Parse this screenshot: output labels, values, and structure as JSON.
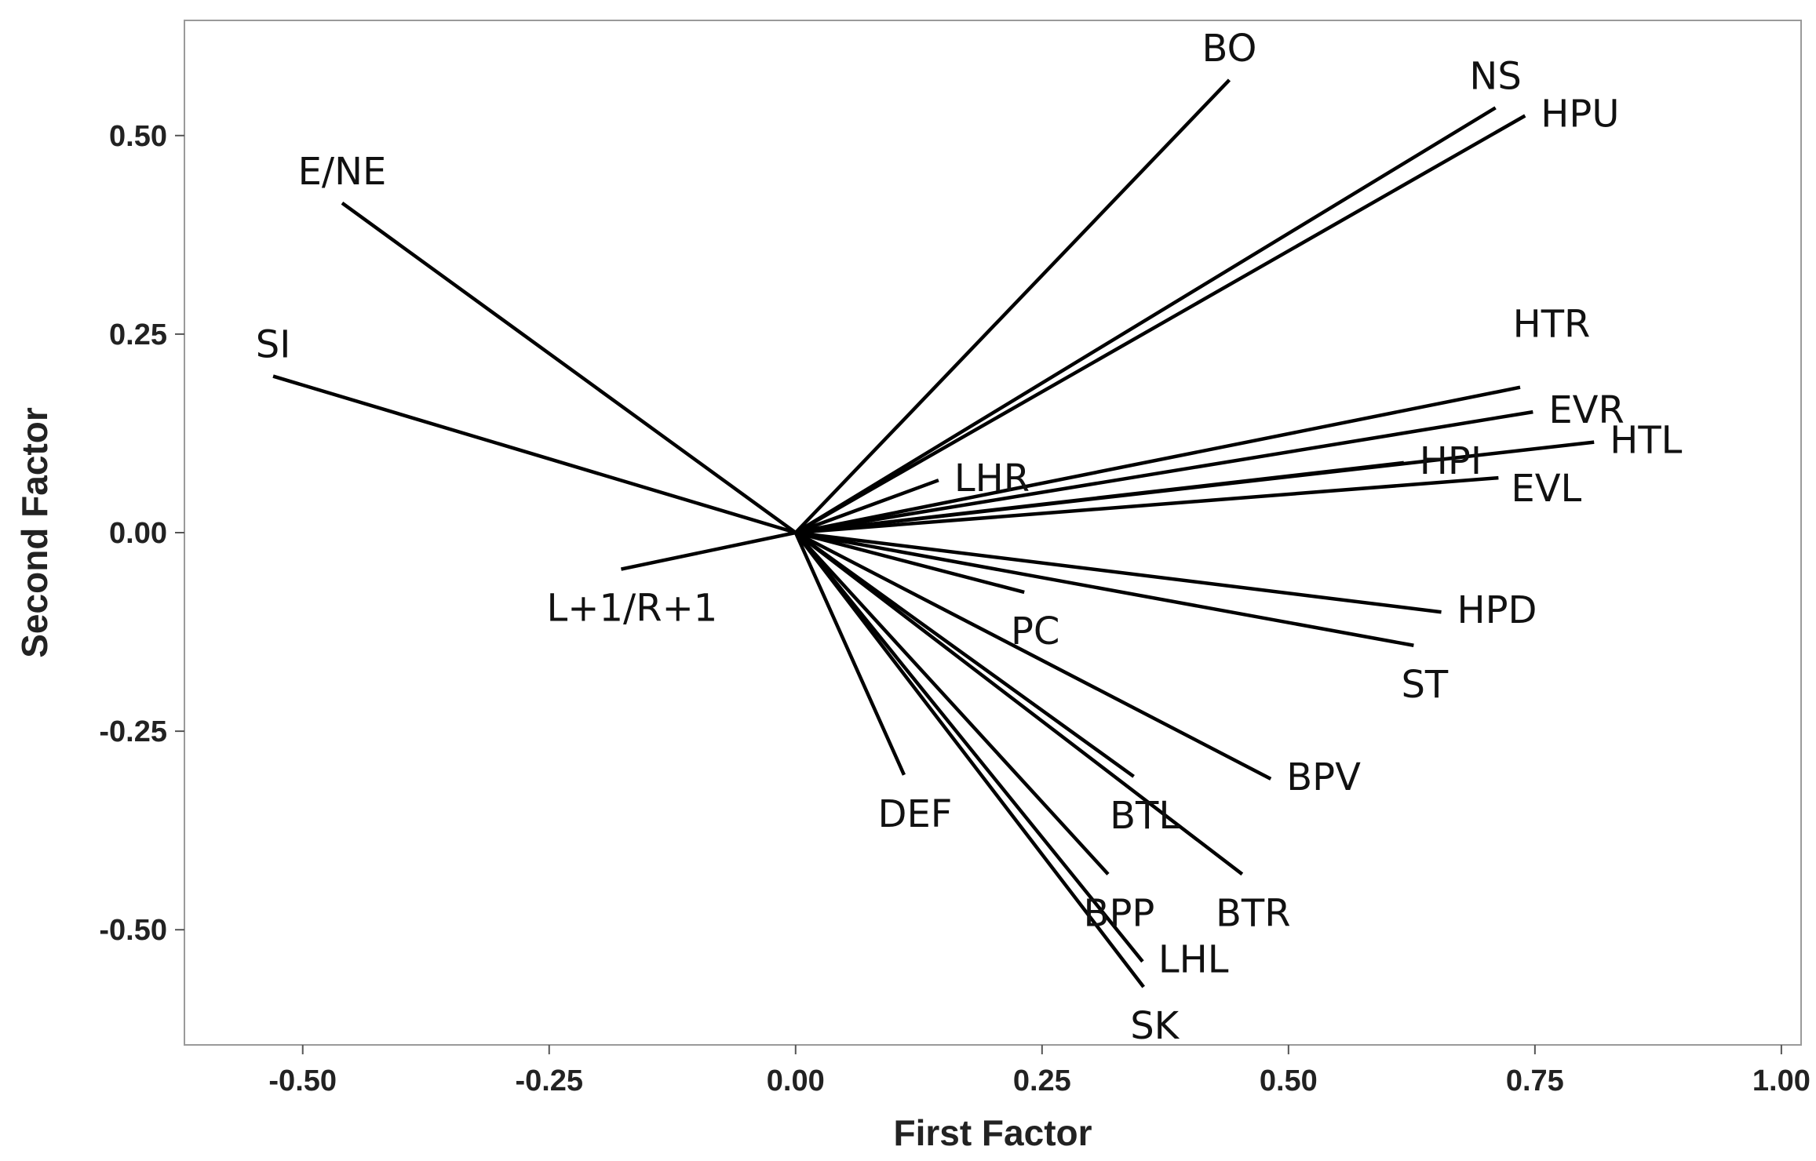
{
  "chart_data": {
    "type": "scatter",
    "subtype": "loading-plot",
    "title": "",
    "xlabel": "First Factor",
    "ylabel": "Second Factor",
    "xlim": [
      -0.62,
      1.02
    ],
    "ylim": [
      -0.645,
      0.645
    ],
    "xticks": [
      "-0.50",
      "-0.25",
      "0.00",
      "0.25",
      "0.50",
      "0.75",
      "1.00"
    ],
    "xtick_values": [
      -0.5,
      -0.25,
      0,
      0.25,
      0.5,
      0.75,
      1.0
    ],
    "yticks": [
      "0.50",
      "0.25",
      "0.00",
      "-0.25",
      "-0.50"
    ],
    "ytick_values": [
      0.5,
      0.25,
      0,
      -0.25,
      -0.5
    ],
    "grid": false,
    "points": [
      {
        "label": "BO",
        "x": 0.44,
        "y": 0.57,
        "label_pos": "top"
      },
      {
        "label": "NS",
        "x": 0.71,
        "y": 0.535,
        "label_pos": "top"
      },
      {
        "label": "HPU",
        "x": 0.74,
        "y": 0.525,
        "label_pos": "right"
      },
      {
        "label": "E/NE",
        "x": -0.46,
        "y": 0.415,
        "label_pos": "top"
      },
      {
        "label": "SI",
        "x": -0.53,
        "y": 0.197,
        "label_pos": "top"
      },
      {
        "label": "HTR",
        "x": 0.735,
        "y": 0.183,
        "label_pos": "top-above"
      },
      {
        "label": "EVR",
        "x": 0.748,
        "y": 0.152,
        "label_pos": "right"
      },
      {
        "label": "HTL",
        "x": 0.81,
        "y": 0.114,
        "label_pos": "right"
      },
      {
        "label": "HPI",
        "x": 0.617,
        "y": 0.088,
        "label_pos": "right"
      },
      {
        "label": "EVL",
        "x": 0.713,
        "y": 0.069,
        "label_pos": "right-below"
      },
      {
        "label": "LHR",
        "x": 0.145,
        "y": 0.066,
        "label_pos": "right"
      },
      {
        "label": "L+1/R+1",
        "x": -0.177,
        "y": -0.046,
        "label_pos": "bottom"
      },
      {
        "label": "PC",
        "x": 0.232,
        "y": -0.075,
        "label_pos": "bottom"
      },
      {
        "label": "HPD",
        "x": 0.655,
        "y": -0.1,
        "label_pos": "right"
      },
      {
        "label": "ST",
        "x": 0.627,
        "y": -0.142,
        "label_pos": "bottom"
      },
      {
        "label": "BPV",
        "x": 0.482,
        "y": -0.31,
        "label_pos": "right"
      },
      {
        "label": "BTL",
        "x": 0.343,
        "y": -0.307,
        "label_pos": "bottom"
      },
      {
        "label": "DEF",
        "x": 0.11,
        "y": -0.305,
        "label_pos": "bottom"
      },
      {
        "label": "BTR",
        "x": 0.453,
        "y": -0.43,
        "label_pos": "bottom"
      },
      {
        "label": "BPP",
        "x": 0.317,
        "y": -0.43,
        "label_pos": "bottom"
      },
      {
        "label": "LHL",
        "x": 0.352,
        "y": -0.54,
        "label_pos": "right"
      },
      {
        "label": "SK",
        "x": 0.353,
        "y": -0.572,
        "label_pos": "bottom"
      }
    ]
  }
}
